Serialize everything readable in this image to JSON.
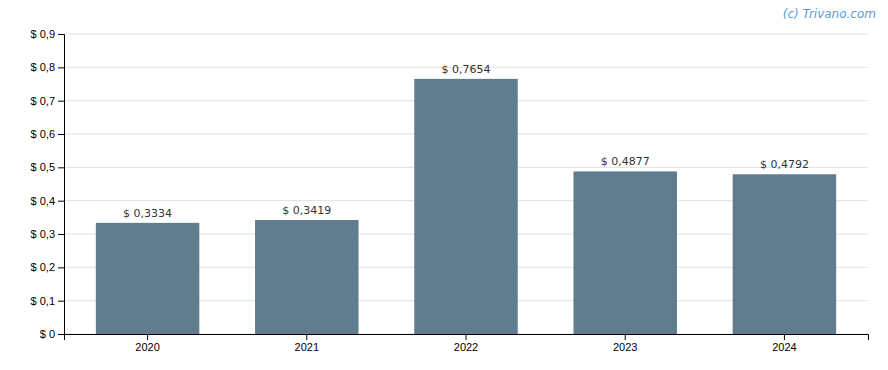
{
  "chart_data": {
    "type": "bar",
    "categories": [
      "2020",
      "2021",
      "2022",
      "2023",
      "2024"
    ],
    "values": [
      0.3334,
      0.3419,
      0.7654,
      0.4877,
      0.4792
    ],
    "value_labels": [
      "$ 0,3334",
      "$ 0,3419",
      "$ 0,7654",
      "$ 0,4877",
      "$ 0,4792"
    ],
    "color": "#5f7d8e",
    "ylim": [
      0,
      0.9
    ],
    "yticks": [
      {
        "value": 0,
        "label": "$ 0"
      },
      {
        "value": 0.1,
        "label": "$ 0,1"
      },
      {
        "value": 0.2,
        "label": "$ 0,2"
      },
      {
        "value": 0.3,
        "label": "$ 0,3"
      },
      {
        "value": 0.4,
        "label": "$ 0,4"
      },
      {
        "value": 0.5,
        "label": "$ 0,5"
      },
      {
        "value": 0.6,
        "label": "$ 0,6"
      },
      {
        "value": 0.7,
        "label": "$ 0,7"
      },
      {
        "value": 0.8,
        "label": "$ 0,8"
      },
      {
        "value": 0.9,
        "label": "$ 0,9"
      }
    ],
    "grid": true,
    "data_labels": true,
    "annotations": [
      "(c) Trivano.com"
    ]
  }
}
